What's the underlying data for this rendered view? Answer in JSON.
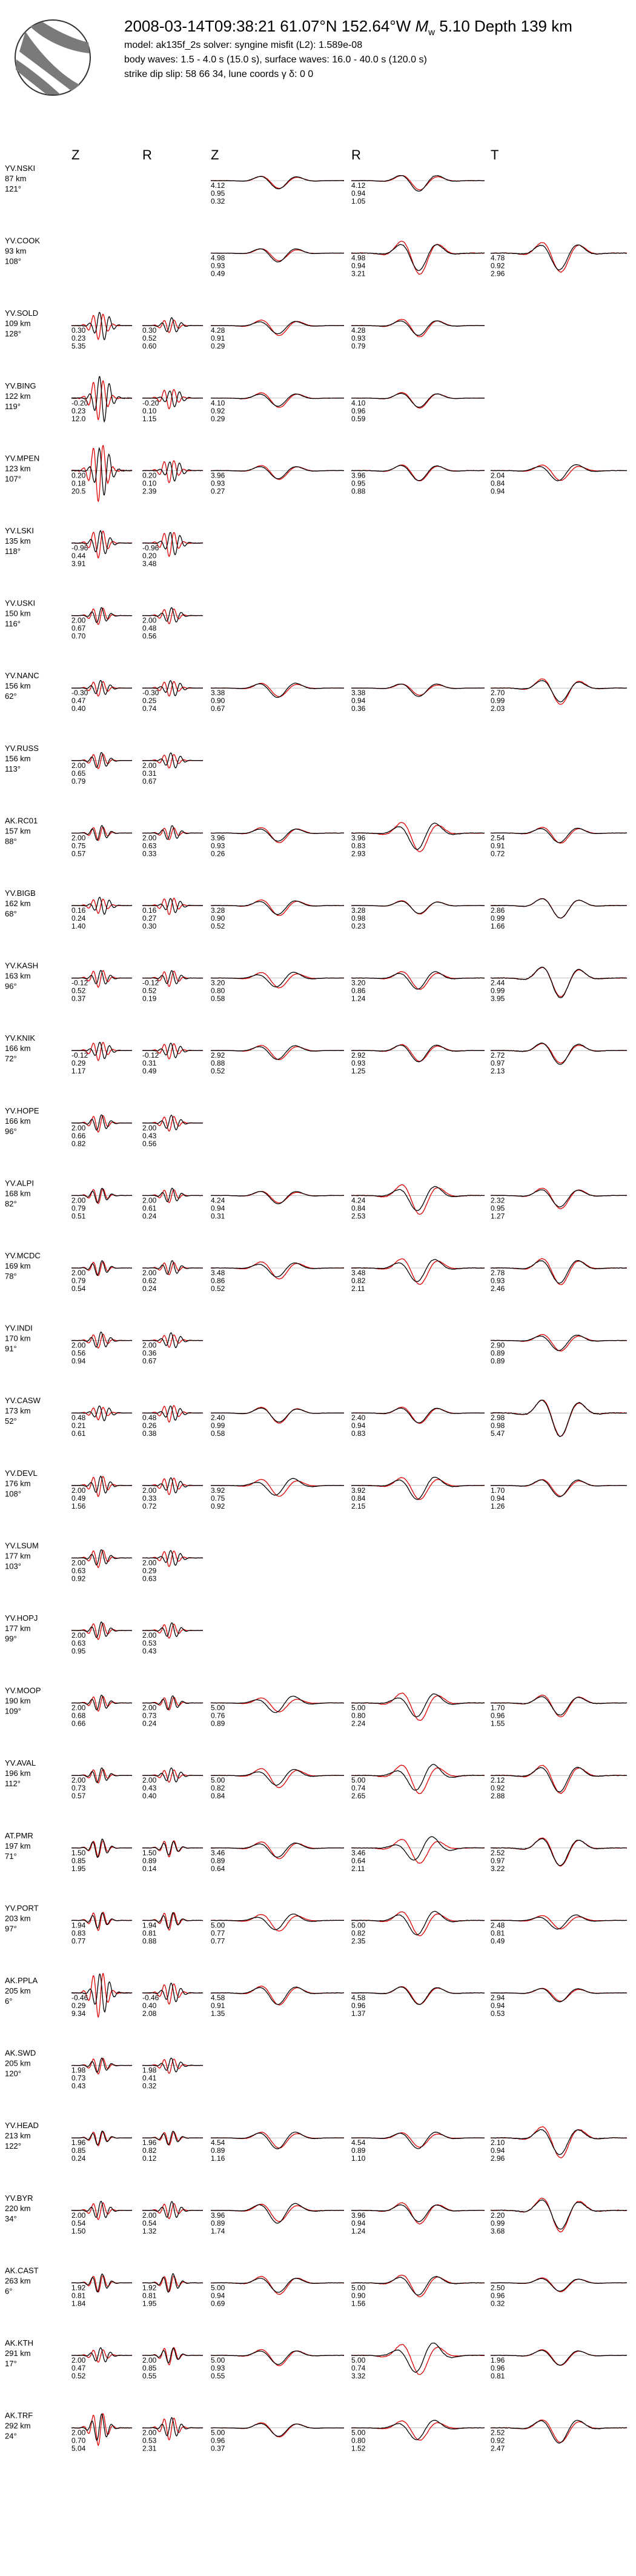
{
  "header": {
    "title_prefix": "2008-03-14T09:38:21  61.07°N 152.64°W  ",
    "mag_symbol": "M",
    "mag_sub": "w",
    "title_suffix": " 5.10  Depth 139 km",
    "model_line": "model: ak135f_2s   solver: syngine   misfit (L2): 1.589e-08",
    "waves_line": "body waves:  1.5 - 4.0 s (15.0 s),  surface waves: 16.0 - 40.0 s (120.0 s)",
    "fm_line": "strike  dip  slip:  58  66  34,   lune coords γ  δ:  0  0"
  },
  "columns": {
    "body_z": "Z",
    "body_r": "R",
    "surf_z": "Z",
    "surf_r": "R",
    "surf_t": "T"
  },
  "colors": {
    "observed": "#000000",
    "synthetic": "#dd0000"
  },
  "chart_data": {
    "type": "line",
    "title": "",
    "legend": "none",
    "grid": false,
    "series_kinds": [
      "observed",
      "synthetic"
    ],
    "stations": [
      {
        "name": "YV.NSKI",
        "dist": "87 km",
        "az": "121°",
        "bz": null,
        "br": null,
        "sz": [
          "4.12",
          "0.95",
          "0.32"
        ],
        "sr": [
          "4.12",
          "0.94",
          "1.05"
        ],
        "st": null
      },
      {
        "name": "YV.COOK",
        "dist": "93 km",
        "az": "108°",
        "bz": null,
        "br": null,
        "sz": [
          "4.98",
          "0.93",
          "0.49"
        ],
        "sr": [
          "4.98",
          "0.94",
          "3.21"
        ],
        "st": [
          "4.78",
          "0.92",
          "2.96"
        ]
      },
      {
        "name": "YV.SOLD",
        "dist": "109 km",
        "az": "128°",
        "bz": [
          "0.30",
          "0.23",
          "5.35"
        ],
        "br": [
          "0.30",
          "0.52",
          "0.60"
        ],
        "sz": [
          "4.28",
          "0.91",
          "0.29"
        ],
        "sr": [
          "4.28",
          "0.93",
          "0.79"
        ],
        "st": null
      },
      {
        "name": "YV.BING",
        "dist": "122 km",
        "az": "119°",
        "bz": [
          "-0.20",
          "0.23",
          "12.0"
        ],
        "br": [
          "-0.20",
          "0.10",
          "1.15"
        ],
        "sz": [
          "4.10",
          "0.92",
          "0.29"
        ],
        "sr": [
          "4.10",
          "0.96",
          "0.59"
        ],
        "st": null
      },
      {
        "name": "YV.MPEN",
        "dist": "123 km",
        "az": "107°",
        "bz": [
          "0.20",
          "0.18",
          "20.5"
        ],
        "br": [
          "0.20",
          "0.10",
          "2.39"
        ],
        "sz": [
          "3.96",
          "0.93",
          "0.27"
        ],
        "sr": [
          "3.96",
          "0.95",
          "0.88"
        ],
        "st": [
          "2.04",
          "0.84",
          "0.94"
        ]
      },
      {
        "name": "YV.LSKI",
        "dist": "135 km",
        "az": "118°",
        "bz": [
          "-0.96",
          "0.44",
          "3.91"
        ],
        "br": [
          "-0.96",
          "0.20",
          "3.48"
        ],
        "sz": null,
        "sr": null,
        "st": null
      },
      {
        "name": "YV.USKI",
        "dist": "150 km",
        "az": "116°",
        "bz": [
          "2.00",
          "0.67",
          "0.70"
        ],
        "br": [
          "2.00",
          "0.48",
          "0.56"
        ],
        "sz": null,
        "sr": null,
        "st": null
      },
      {
        "name": "YV.NANC",
        "dist": "156 km",
        "az": "62°",
        "bz": [
          "-0.30",
          "0.47",
          "0.40"
        ],
        "br": [
          "-0.30",
          "0.25",
          "0.74"
        ],
        "sz": [
          "3.38",
          "0.90",
          "0.67"
        ],
        "sr": [
          "3.38",
          "0.94",
          "0.36"
        ],
        "st": [
          "2.70",
          "0.99",
          "2.03"
        ]
      },
      {
        "name": "YV.RUSS",
        "dist": "156 km",
        "az": "113°",
        "bz": [
          "2.00",
          "0.65",
          "0.79"
        ],
        "br": [
          "2.00",
          "0.31",
          "0.67"
        ],
        "sz": null,
        "sr": null,
        "st": null
      },
      {
        "name": "AK.RC01",
        "dist": "157 km",
        "az": "88°",
        "bz": [
          "2.00",
          "0.75",
          "0.57"
        ],
        "br": [
          "2.00",
          "0.63",
          "0.33"
        ],
        "sz": [
          "3.96",
          "0.93",
          "0.26"
        ],
        "sr": [
          "3.96",
          "0.83",
          "2.93"
        ],
        "st": [
          "2.54",
          "0.91",
          "0.72"
        ]
      },
      {
        "name": "YV.BIGB",
        "dist": "162 km",
        "az": "68°",
        "bz": [
          "0.16",
          "0.24",
          "1.40"
        ],
        "br": [
          "0.16",
          "0.27",
          "0.30"
        ],
        "sz": [
          "3.28",
          "0.90",
          "0.52"
        ],
        "sr": [
          "3.28",
          "0.98",
          "0.23"
        ],
        "st": [
          "2.86",
          "0.99",
          "1.66"
        ]
      },
      {
        "name": "YV.KASH",
        "dist": "163 km",
        "az": "96°",
        "bz": [
          "-0.12",
          "0.52",
          "0.37"
        ],
        "br": [
          "-0.12",
          "0.52",
          "0.19"
        ],
        "sz": [
          "3.20",
          "0.80",
          "0.58"
        ],
        "sr": [
          "3.20",
          "0.86",
          "1.24"
        ],
        "st": [
          "2.44",
          "0.99",
          "3.95"
        ]
      },
      {
        "name": "YV.KNIK",
        "dist": "166 km",
        "az": "72°",
        "bz": [
          "-0.12",
          "0.29",
          "1.17"
        ],
        "br": [
          "-0.12",
          "0.31",
          "0.49"
        ],
        "sz": [
          "2.92",
          "0.88",
          "0.52"
        ],
        "sr": [
          "2.92",
          "0.93",
          "1.25"
        ],
        "st": [
          "2.72",
          "0.97",
          "2.13"
        ]
      },
      {
        "name": "YV.HOPE",
        "dist": "166 km",
        "az": "96°",
        "bz": [
          "2.00",
          "0.66",
          "0.82"
        ],
        "br": [
          "2.00",
          "0.43",
          "0.56"
        ],
        "sz": null,
        "sr": null,
        "st": null
      },
      {
        "name": "YV.ALPI",
        "dist": "168 km",
        "az": "82°",
        "bz": [
          "2.00",
          "0.79",
          "0.51"
        ],
        "br": [
          "2.00",
          "0.61",
          "0.24"
        ],
        "sz": [
          "4.24",
          "0.94",
          "0.31"
        ],
        "sr": [
          "4.24",
          "0.84",
          "2.53"
        ],
        "st": [
          "2.32",
          "0.95",
          "1.27"
        ]
      },
      {
        "name": "YV.MCDC",
        "dist": "169 km",
        "az": "78°",
        "bz": [
          "2.00",
          "0.79",
          "0.54"
        ],
        "br": [
          "2.00",
          "0.62",
          "0.24"
        ],
        "sz": [
          "3.48",
          "0.86",
          "0.52"
        ],
        "sr": [
          "3.48",
          "0.82",
          "2.11"
        ],
        "st": [
          "2.78",
          "0.93",
          "2.46"
        ]
      },
      {
        "name": "YV.INDI",
        "dist": "170 km",
        "az": "91°",
        "bz": [
          "2.00",
          "0.56",
          "0.94"
        ],
        "br": [
          "2.00",
          "0.36",
          "0.67"
        ],
        "sz": null,
        "sr": null,
        "st": [
          "2.90",
          "0.89",
          "0.89"
        ]
      },
      {
        "name": "YV.CASW",
        "dist": "173 km",
        "az": "52°",
        "bz": [
          "0.48",
          "0.21",
          "0.61"
        ],
        "br": [
          "0.48",
          "0.26",
          "0.38"
        ],
        "sz": [
          "2.40",
          "0.99",
          "0.58"
        ],
        "sr": [
          "2.40",
          "0.94",
          "0.83"
        ],
        "st": [
          "2.98",
          "0.98",
          "5.47"
        ]
      },
      {
        "name": "YV.DEVL",
        "dist": "176 km",
        "az": "108°",
        "bz": [
          "2.00",
          "0.49",
          "1.56"
        ],
        "br": [
          "2.00",
          "0.33",
          "0.72"
        ],
        "sz": [
          "3.92",
          "0.75",
          "0.92"
        ],
        "sr": [
          "3.92",
          "0.84",
          "2.15"
        ],
        "st": [
          "1.70",
          "0.94",
          "1.26"
        ]
      },
      {
        "name": "YV.LSUM",
        "dist": "177 km",
        "az": "103°",
        "bz": [
          "2.00",
          "0.63",
          "0.92"
        ],
        "br": [
          "2.00",
          "0.29",
          "0.63"
        ],
        "sz": null,
        "sr": null,
        "st": null
      },
      {
        "name": "YV.HOPJ",
        "dist": "177 km",
        "az": "99°",
        "bz": [
          "2.00",
          "0.63",
          "0.95"
        ],
        "br": [
          "2.00",
          "0.53",
          "0.43"
        ],
        "sz": null,
        "sr": null,
        "st": null
      },
      {
        "name": "YV.MOOP",
        "dist": "190 km",
        "az": "109°",
        "bz": [
          "2.00",
          "0.68",
          "0.66"
        ],
        "br": [
          "2.00",
          "0.73",
          "0.24"
        ],
        "sz": [
          "5.00",
          "0.76",
          "0.89"
        ],
        "sr": [
          "5.00",
          "0.80",
          "2.24"
        ],
        "st": [
          "1.70",
          "0.96",
          "1.55"
        ]
      },
      {
        "name": "YV.AVAL",
        "dist": "196 km",
        "az": "112°",
        "bz": [
          "2.00",
          "0.73",
          "0.57"
        ],
        "br": [
          "2.00",
          "0.43",
          "0.40"
        ],
        "sz": [
          "5.00",
          "0.82",
          "0.84"
        ],
        "sr": [
          "5.00",
          "0.74",
          "2.65"
        ],
        "st": [
          "2.12",
          "0.92",
          "2.88"
        ]
      },
      {
        "name": "AT.PMR",
        "dist": "197 km",
        "az": "71°",
        "bz": [
          "1.50",
          "0.85",
          "1.95"
        ],
        "br": [
          "1.50",
          "0.89",
          "0.14"
        ],
        "sz": [
          "3.46",
          "0.89",
          "0.64"
        ],
        "sr": [
          "3.46",
          "0.64",
          "2.11"
        ],
        "st": [
          "2.52",
          "0.97",
          "3.22"
        ]
      },
      {
        "name": "YV.PORT",
        "dist": "203 km",
        "az": "97°",
        "bz": [
          "1.94",
          "0.83",
          "0.77"
        ],
        "br": [
          "1.94",
          "0.81",
          "0.88"
        ],
        "sz": [
          "5.00",
          "0.77",
          "0.77"
        ],
        "sr": [
          "5.00",
          "0.82",
          "2.35"
        ],
        "st": [
          "2.48",
          "0.81",
          "0.49"
        ]
      },
      {
        "name": "AK.PPLA",
        "dist": "205 km",
        "az": "6°",
        "bz": [
          "-0.46",
          "0.29",
          "9.34"
        ],
        "br": [
          "-0.46",
          "0.40",
          "2.08"
        ],
        "sz": [
          "4.58",
          "0.91",
          "1.35"
        ],
        "sr": [
          "4.58",
          "0.96",
          "1.37"
        ],
        "st": [
          "2.94",
          "0.94",
          "0.53"
        ]
      },
      {
        "name": "AK.SWD",
        "dist": "205 km",
        "az": "120°",
        "bz": [
          "1.98",
          "0.73",
          "0.43"
        ],
        "br": [
          "1.98",
          "0.41",
          "0.32"
        ],
        "sz": null,
        "sr": null,
        "st": null
      },
      {
        "name": "YV.HEAD",
        "dist": "213 km",
        "az": "122°",
        "bz": [
          "1.96",
          "0.85",
          "0.24"
        ],
        "br": [
          "1.96",
          "0.82",
          "0.12"
        ],
        "sz": [
          "4.54",
          "0.89",
          "1.16"
        ],
        "sr": [
          "4.54",
          "0.89",
          "1.10"
        ],
        "st": [
          "2.10",
          "0.94",
          "2.96"
        ]
      },
      {
        "name": "YV.BYR",
        "dist": "220 km",
        "az": "34°",
        "bz": [
          "2.00",
          "0.54",
          "1.50"
        ],
        "br": [
          "2.00",
          "0.54",
          "1.32"
        ],
        "sz": [
          "3.96",
          "0.89",
          "1.74"
        ],
        "sr": [
          "3.96",
          "0.94",
          "1.24"
        ],
        "st": [
          "2.20",
          "0.99",
          "3.68"
        ]
      },
      {
        "name": "AK.CAST",
        "dist": "263 km",
        "az": "6°",
        "bz": [
          "1.92",
          "0.81",
          "1.84"
        ],
        "br": [
          "1.92",
          "0.81",
          "1.95"
        ],
        "sz": [
          "5.00",
          "0.94",
          "0.69"
        ],
        "sr": [
          "5.00",
          "0.90",
          "1.56"
        ],
        "st": [
          "2.50",
          "0.96",
          "0.32"
        ]
      },
      {
        "name": "AK.KTH",
        "dist": "291 km",
        "az": "17°",
        "bz": [
          "2.00",
          "0.47",
          "0.52"
        ],
        "br": [
          "2.00",
          "0.85",
          "0.55"
        ],
        "sz": [
          "5.00",
          "0.93",
          "0.55"
        ],
        "sr": [
          "5.00",
          "0.74",
          "3.32"
        ],
        "st": [
          "1.96",
          "0.96",
          "0.81"
        ]
      },
      {
        "name": "AK.TRF",
        "dist": "292 km",
        "az": "24°",
        "bz": [
          "2.00",
          "0.70",
          "5.04"
        ],
        "br": [
          "2.00",
          "0.53",
          "2.31"
        ],
        "sz": [
          "5.00",
          "0.96",
          "0.37"
        ],
        "sr": [
          "5.00",
          "0.80",
          "1.52"
        ],
        "st": [
          "2.52",
          "0.92",
          "2.47"
        ]
      }
    ]
  }
}
